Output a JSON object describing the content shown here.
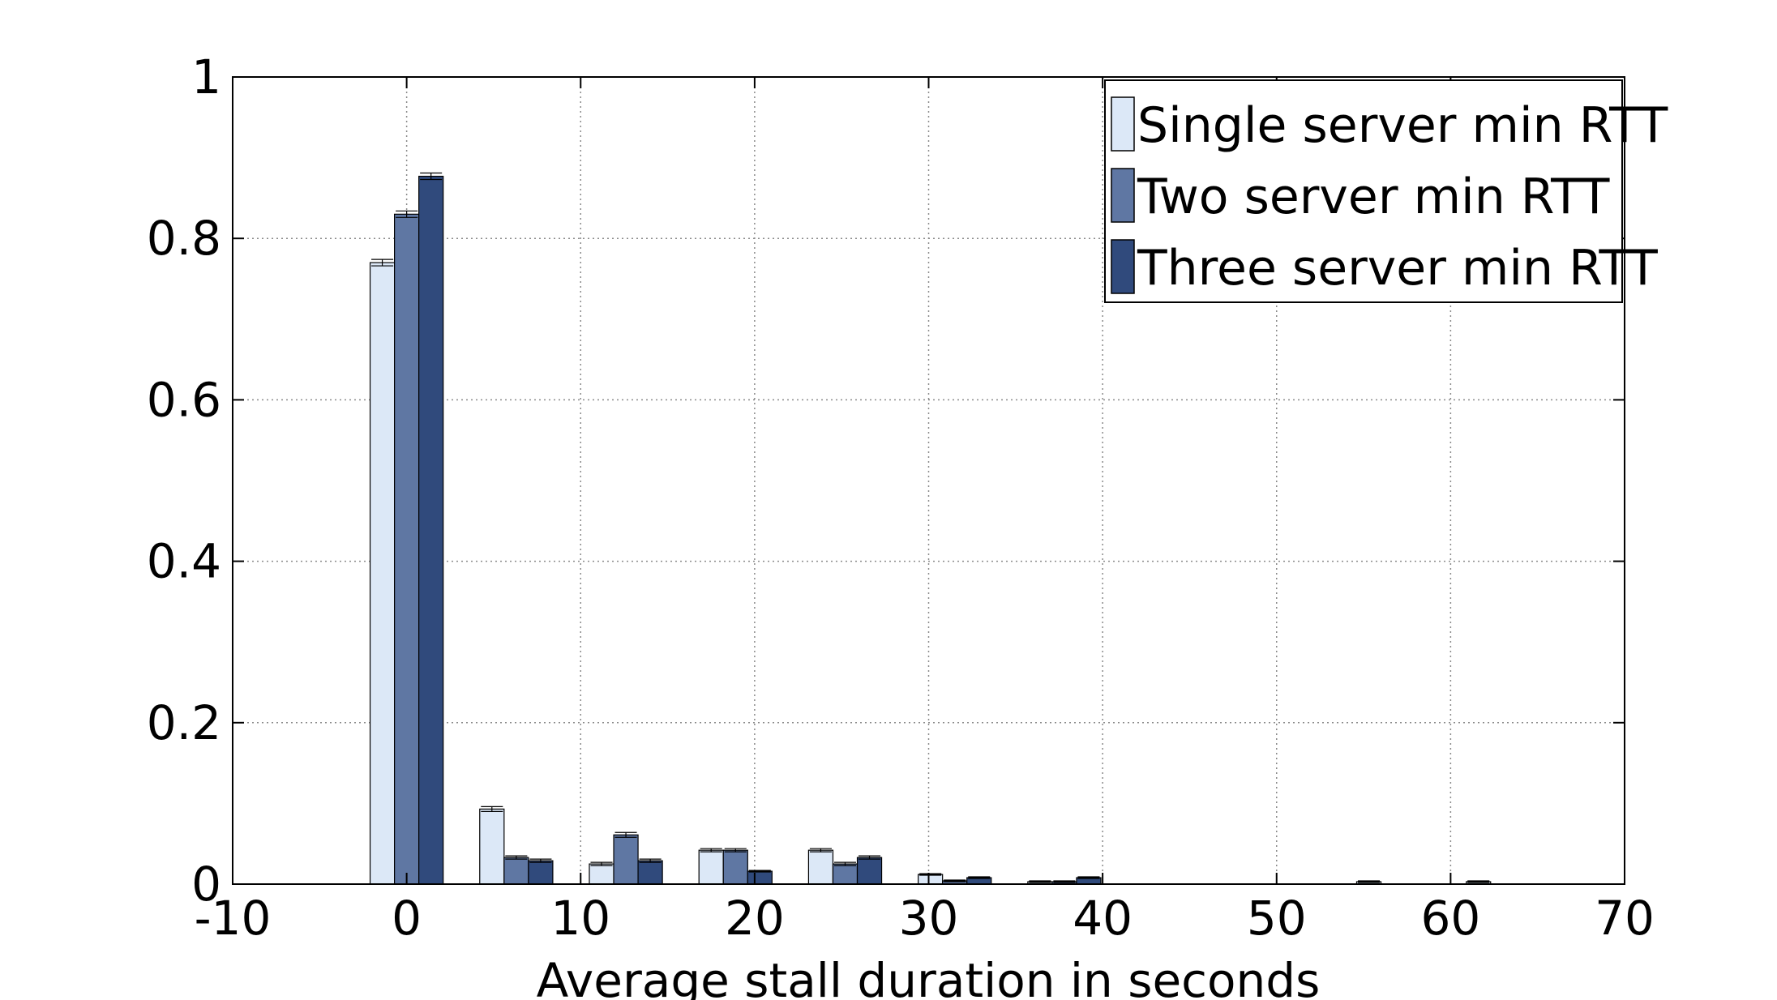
{
  "chart_data": {
    "type": "bar",
    "xlabel": "Average stall duration in seconds",
    "ylabel": "",
    "title": "",
    "xlim": [
      -10,
      70
    ],
    "ylim": [
      0,
      1
    ],
    "xticks": [
      -10,
      0,
      10,
      20,
      30,
      40,
      50,
      60,
      70
    ],
    "xtick_labels": [
      "-10",
      "0",
      "10",
      "20",
      "30",
      "40",
      "50",
      "60",
      "70"
    ],
    "yticks": [
      0,
      0.2,
      0.4,
      0.6,
      0.8,
      1
    ],
    "ytick_labels": [
      "0",
      "0.2",
      "0.4",
      "0.6",
      "0.8",
      "1"
    ],
    "grid": true,
    "legend_position": "top-right",
    "bin_centers": [
      0,
      6.3,
      12.6,
      18.9,
      25.2,
      31.5,
      37.8,
      44.1,
      50.4,
      56.7,
      63
    ],
    "series": [
      {
        "name": "Single server min RTT",
        "color": "#dce8f7",
        "values": [
          0.77,
          0.093,
          0.025,
          0.042,
          0.042,
          0.012,
          0.003,
          0,
          0,
          0.003,
          0.003
        ],
        "errors": [
          0.004,
          0.003,
          0.002,
          0.002,
          0.002,
          0.001,
          0.001,
          0,
          0,
          0.001,
          0.001
        ]
      },
      {
        "name": "Two server min RTT",
        "color": "#5f77a3",
        "values": [
          0.83,
          0.033,
          0.061,
          0.042,
          0.025,
          0.004,
          0.003,
          0,
          0,
          0,
          0
        ],
        "errors": [
          0.004,
          0.002,
          0.003,
          0.002,
          0.002,
          0.001,
          0.001,
          0,
          0,
          0,
          0
        ]
      },
      {
        "name": "Three server min RTT",
        "color": "#304a7c",
        "values": [
          0.877,
          0.029,
          0.029,
          0.016,
          0.033,
          0.008,
          0.008,
          0,
          0,
          0,
          0
        ],
        "errors": [
          0.004,
          0.002,
          0.002,
          0.001,
          0.002,
          0.001,
          0.001,
          0,
          0,
          0,
          0
        ]
      }
    ]
  }
}
